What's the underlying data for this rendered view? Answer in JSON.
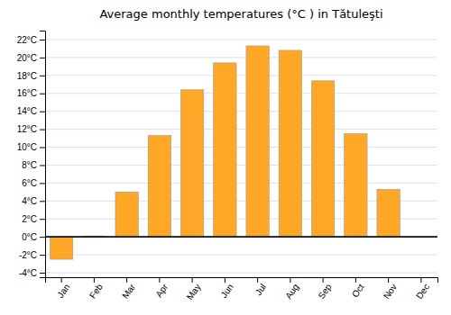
{
  "chart_data": {
    "type": "bar",
    "title": "Average monthly temperatures (°C ) in Tătuleşti",
    "categories": [
      "Jan",
      "Feb",
      "Mar",
      "Apr",
      "May",
      "Jun",
      "Jul",
      "Aug",
      "Sep",
      "Oct",
      "Nov",
      "Dec"
    ],
    "values": [
      -2.5,
      0.1,
      5.0,
      11.3,
      16.4,
      19.4,
      21.3,
      20.8,
      17.4,
      11.5,
      5.3,
      0.0
    ],
    "color": "#FFA726",
    "ylim": [
      -4.5,
      23
    ],
    "yticks": [
      {
        "value": -4,
        "label": "-4°C"
      },
      {
        "value": -2,
        "label": "-2°C"
      },
      {
        "value": 0,
        "label": "0°C"
      },
      {
        "value": 2,
        "label": "2°C"
      },
      {
        "value": 4,
        "label": "4°C"
      },
      {
        "value": 6,
        "label": "6°C"
      },
      {
        "value": 8,
        "label": "8°C"
      },
      {
        "value": 10,
        "label": "10°C"
      },
      {
        "value": 12,
        "label": "12°C"
      },
      {
        "value": 14,
        "label": "14°C"
      },
      {
        "value": 16,
        "label": "16°C"
      },
      {
        "value": 18,
        "label": "18°C"
      },
      {
        "value": 20,
        "label": "20°C"
      },
      {
        "value": 22,
        "label": "22°C"
      }
    ],
    "grid": true
  }
}
